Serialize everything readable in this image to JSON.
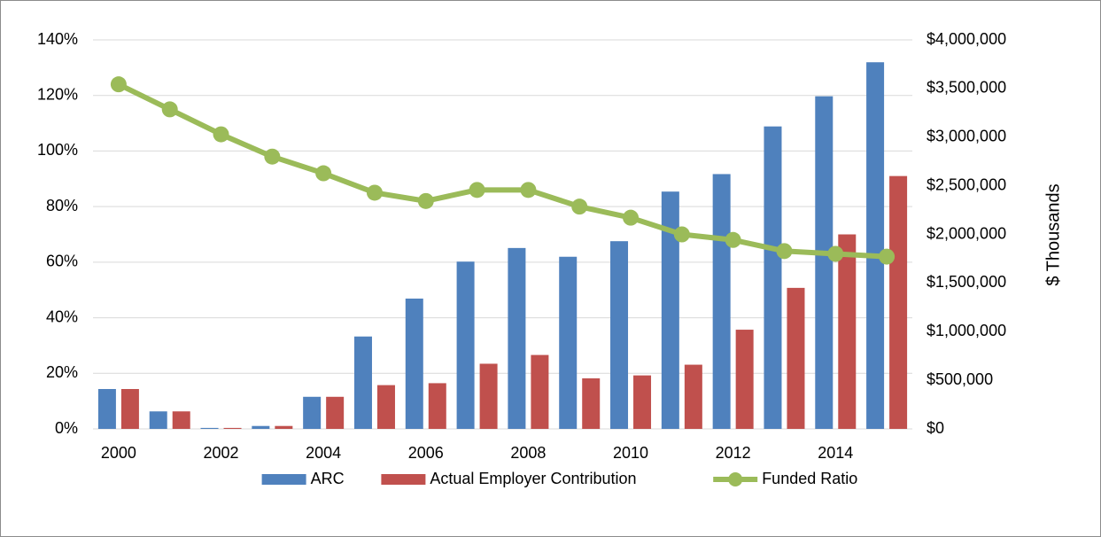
{
  "chart_data": {
    "type": "bar",
    "categories": [
      "2000",
      null,
      "2002",
      null,
      "2004",
      null,
      "2006",
      null,
      "2008",
      null,
      "2010",
      null,
      "2012",
      null,
      "2014",
      null
    ],
    "series": [
      {
        "name": "ARC",
        "type": "bar",
        "axis": "y2",
        "color": "#4f81bd",
        "values": [
          410000,
          180000,
          10000,
          30000,
          330000,
          950000,
          1340000,
          1720000,
          1860000,
          1770000,
          1930000,
          2440000,
          2620000,
          3110000,
          3420000,
          3770000
        ]
      },
      {
        "name": "Actual Employer Contribution",
        "type": "bar",
        "axis": "y2",
        "color": "#c0504d",
        "values": [
          410000,
          180000,
          10000,
          30000,
          330000,
          450000,
          470000,
          670000,
          760000,
          520000,
          550000,
          660000,
          1020000,
          1450000,
          2000000,
          2600000
        ]
      },
      {
        "name": "Funded Ratio",
        "type": "line",
        "color": "#9bbb59",
        "values": [
          124,
          115,
          106,
          98,
          92,
          85,
          82,
          86,
          86,
          80,
          76,
          70,
          68,
          64,
          63,
          62
        ]
      }
    ],
    "ylim": [
      0,
      140
    ],
    "yticks": [
      {
        "value": 0,
        "label": "0%"
      },
      {
        "value": 20,
        "label": "20%"
      },
      {
        "value": 40,
        "label": "40%"
      },
      {
        "value": 60,
        "label": "60%"
      },
      {
        "value": 80,
        "label": "80%"
      },
      {
        "value": 100,
        "label": "100%"
      },
      {
        "value": 120,
        "label": "120%"
      },
      {
        "value": 140,
        "label": "140%"
      }
    ],
    "y2lim": [
      0,
      4000000
    ],
    "y2ticks": [
      {
        "value": 0,
        "label": "$0"
      },
      {
        "value": 500000,
        "label": "$500,000"
      },
      {
        "value": 1000000,
        "label": "$1,000,000"
      },
      {
        "value": 1500000,
        "label": "$1,500,000"
      },
      {
        "value": 2000000,
        "label": "$2,000,000"
      },
      {
        "value": 2500000,
        "label": "$2,500,000"
      },
      {
        "value": 3000000,
        "label": "$3,000,000"
      },
      {
        "value": 3500000,
        "label": "$3,500,000"
      },
      {
        "value": 4000000,
        "label": "$4,000,000"
      }
    ],
    "y2label": "$ Thousands",
    "grid": true,
    "legend": "bottom"
  }
}
